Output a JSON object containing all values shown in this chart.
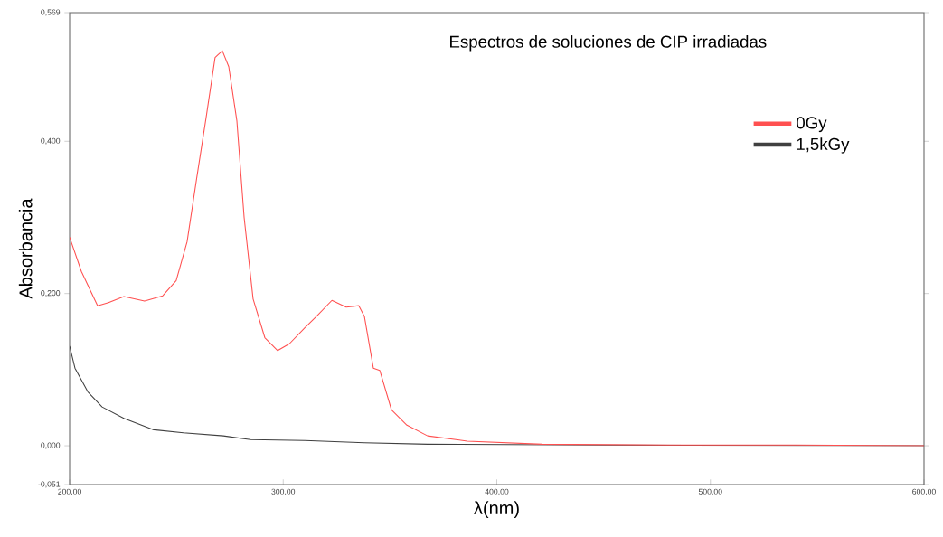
{
  "chart_data": {
    "type": "line",
    "title": "Espectros de soluciones de CIP irradiadas",
    "xlabel": "λ(nm)",
    "ylabel": "Absorbancia",
    "xlim": [
      200,
      600
    ],
    "ylim": [
      -0.051,
      0.569
    ],
    "xticks": [
      {
        "value": 200,
        "label": "200,00"
      },
      {
        "value": 300,
        "label": "300,00"
      },
      {
        "value": 400,
        "label": "400,00"
      },
      {
        "value": 500,
        "label": "500,00"
      },
      {
        "value": 600,
        "label": "600,00"
      }
    ],
    "yticks": [
      {
        "value": -0.051,
        "label": "-0,051"
      },
      {
        "value": 0,
        "label": "0,000"
      },
      {
        "value": 0.2,
        "label": "0,200"
      },
      {
        "value": 0.4,
        "label": "0,400"
      },
      {
        "value": 0.569,
        "label": "0,569"
      }
    ],
    "grid": false,
    "legend": "top right",
    "marker": "none",
    "line_style": "solid",
    "series": [
      {
        "name": "0Gy",
        "color": "#ff5050",
        "x": [
          200,
          205.5,
          213.1,
          218.2,
          225.4,
          235.1,
          243.6,
          249.9,
          255.0,
          259.3,
          263.9,
          268.1,
          271.5,
          274.5,
          278.3,
          281.7,
          285.9,
          291.4,
          297.4,
          302.9,
          310.1,
          315.6,
          322.8,
          329.5,
          335.4,
          338.0,
          342.2,
          345.2,
          350.7,
          357.9,
          367.6,
          386.2,
          421.4,
          480,
          540,
          600
        ],
        "values": [
          0.274,
          0.229,
          0.184,
          0.188,
          0.196,
          0.19,
          0.197,
          0.217,
          0.268,
          0.348,
          0.431,
          0.51,
          0.519,
          0.498,
          0.427,
          0.3,
          0.193,
          0.142,
          0.125,
          0.134,
          0.155,
          0.17,
          0.191,
          0.182,
          0.184,
          0.17,
          0.102,
          0.099,
          0.047,
          0.027,
          0.013,
          0.006,
          0.002,
          0.001,
          0.001,
          0.0
        ]
      },
      {
        "name": "1,5kGy",
        "color": "#404040",
        "x": [
          200,
          202.5,
          208.5,
          215.2,
          225.4,
          239.4,
          253.3,
          272.0,
          284.7,
          310.1,
          338.0,
          367.6,
          450,
          600
        ],
        "values": [
          0.131,
          0.102,
          0.071,
          0.051,
          0.036,
          0.021,
          0.017,
          0.013,
          0.008,
          0.007,
          0.004,
          0.002,
          0.001,
          0.0
        ]
      }
    ]
  }
}
